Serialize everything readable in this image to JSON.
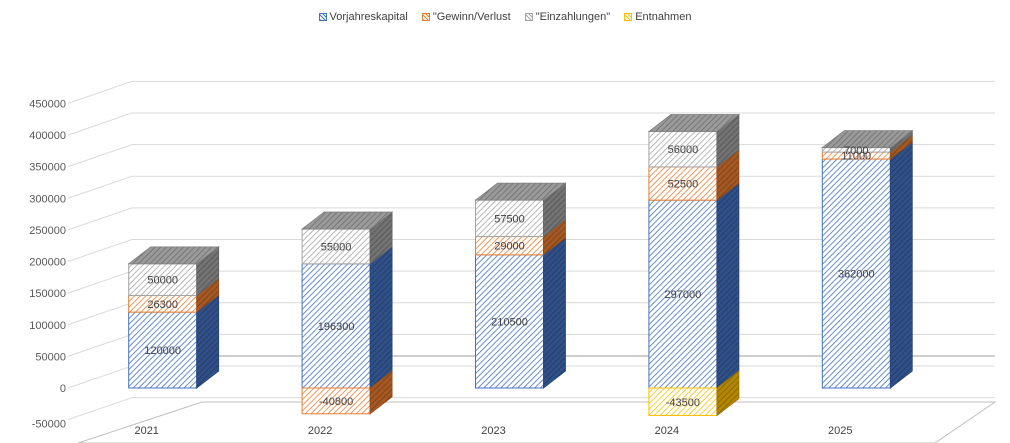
{
  "chart_data": {
    "type": "bar",
    "stacked": true,
    "three_d": true,
    "categories": [
      "2021",
      "2022",
      "2023",
      "2024",
      "2025"
    ],
    "series": [
      {
        "name": "Vorjahreskapital",
        "values": [
          120000,
          196300,
          210500,
          297000,
          362000
        ],
        "color": "#4472C4"
      },
      {
        "name": "\"Gewinn/Verlust",
        "values": [
          26300,
          -40800,
          29000,
          52500,
          11000
        ],
        "color": "#ED7D31"
      },
      {
        "name": "\"Einzahlungen\"",
        "values": [
          50000,
          55000,
          57500,
          56000,
          7000
        ],
        "color": "#A5A5A5"
      },
      {
        "name": "Entnahmen",
        "values": [
          null,
          null,
          null,
          -43500,
          null
        ],
        "color": "#FFC000"
      }
    ],
    "y_ticks": [
      -50000,
      0,
      50000,
      100000,
      150000,
      200000,
      250000,
      300000,
      350000,
      400000,
      450000
    ],
    "ylim": [
      -50000,
      450000
    ],
    "title": "",
    "xlabel": "",
    "ylabel": "",
    "legend_position": "top"
  }
}
